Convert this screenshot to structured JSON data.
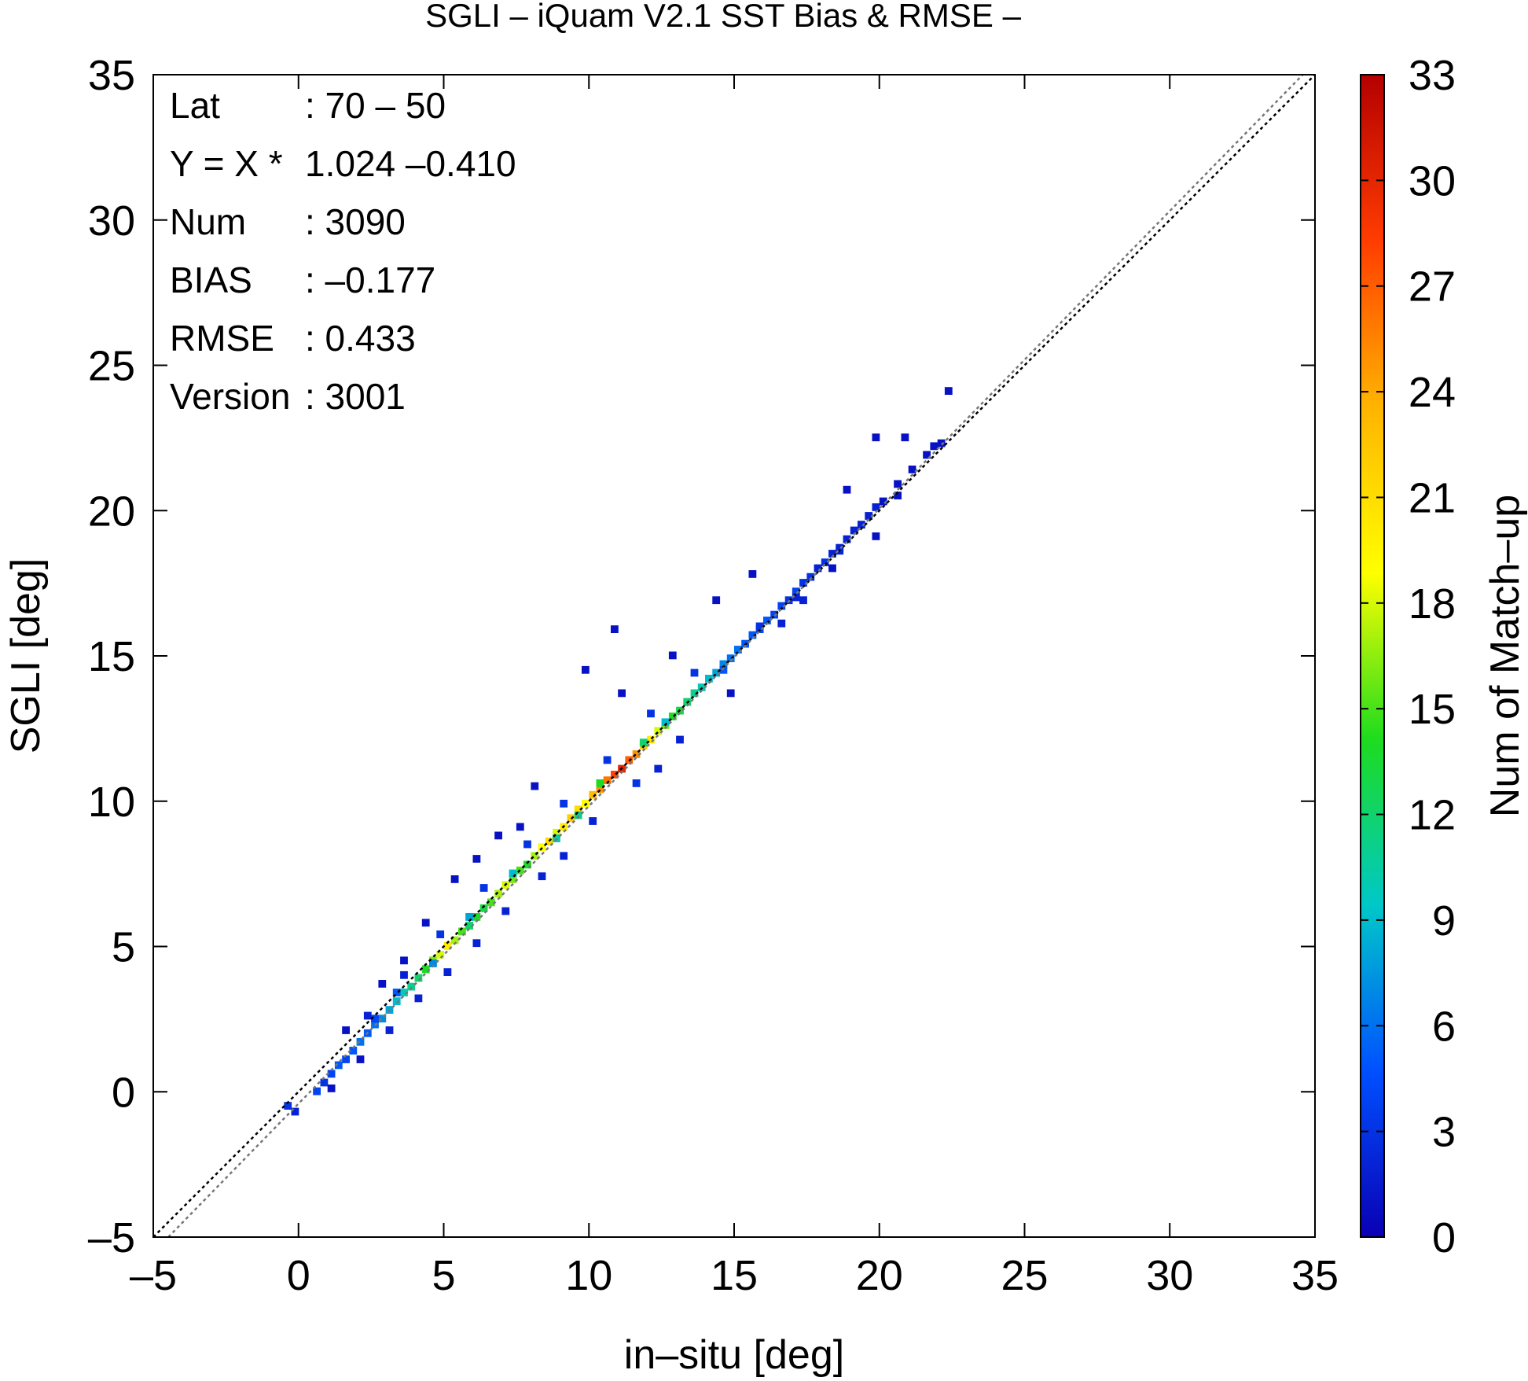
{
  "chart_data": {
    "type": "heatmap",
    "title": "SGLI – iQuam V2.1 SST Bias & RMSE  –",
    "xlabel": "in–situ [deg]",
    "ylabel": "SGLI [deg]",
    "xlim": [
      -5,
      35
    ],
    "ylim": [
      -5,
      35
    ],
    "x_ticks": [
      "–5",
      "0",
      "5",
      "10",
      "15",
      "20",
      "25",
      "30",
      "35"
    ],
    "y_ticks": [
      "–5",
      "0",
      "5",
      "10",
      "15",
      "20",
      "25",
      "30",
      "35"
    ],
    "colorbar": {
      "label": "Num of Match–up",
      "range": [
        0,
        33
      ],
      "ticks": [
        "0",
        "3",
        "6",
        "9",
        "12",
        "15",
        "18",
        "21",
        "24",
        "27",
        "30",
        "33"
      ],
      "colors": [
        "#0a00b4",
        "#0050ff",
        "#00c8c8",
        "#1edc1e",
        "#ffff00",
        "#ffb400",
        "#ff3c00",
        "#b40000"
      ]
    },
    "reference_lines": [
      {
        "name": "1:1 line",
        "slope": 1,
        "intercept": 0,
        "color": "#000000",
        "style": "dotted"
      },
      {
        "name": "regression",
        "slope": 1.024,
        "intercept": -0.41,
        "color": "#777777",
        "style": "dotted"
      }
    ],
    "stats": [
      {
        "label": "Lat",
        "value": ": 70 – 50"
      },
      {
        "label": "Y = X *",
        "value": "1.024 –0.410"
      },
      {
        "label": "Num",
        "value": ": 3090"
      },
      {
        "label": "BIAS",
        "value": ": –0.177"
      },
      {
        "label": "RMSE",
        "value": ": 0.433"
      },
      {
        "label": "Version",
        "value": ": 3001"
      }
    ],
    "cell_size": 0.25,
    "cells": [
      [
        -0.5,
        -0.6,
        3
      ],
      [
        -0.25,
        -0.8,
        2
      ],
      [
        0.5,
        -0.1,
        4
      ],
      [
        0.75,
        0.2,
        3
      ],
      [
        1.0,
        0.5,
        4
      ],
      [
        1.25,
        0.8,
        5
      ],
      [
        1.5,
        1.0,
        4
      ],
      [
        1.75,
        1.3,
        5
      ],
      [
        2.0,
        1.6,
        6
      ],
      [
        2.25,
        1.9,
        5
      ],
      [
        2.5,
        2.2,
        6
      ],
      [
        2.75,
        2.4,
        7
      ],
      [
        3.0,
        2.7,
        8
      ],
      [
        3.25,
        3.0,
        9
      ],
      [
        3.5,
        3.3,
        10
      ],
      [
        3.75,
        3.5,
        11
      ],
      [
        4.0,
        3.8,
        12
      ],
      [
        4.25,
        4.1,
        14
      ],
      [
        4.5,
        4.4,
        16
      ],
      [
        4.75,
        4.6,
        18
      ],
      [
        5.0,
        4.9,
        20
      ],
      [
        5.25,
        5.1,
        17
      ],
      [
        5.5,
        5.4,
        15
      ],
      [
        5.75,
        5.6,
        12
      ],
      [
        6.0,
        5.9,
        14
      ],
      [
        6.25,
        6.2,
        13
      ],
      [
        6.5,
        6.4,
        15
      ],
      [
        6.75,
        6.7,
        17
      ],
      [
        7.0,
        7.0,
        18
      ],
      [
        7.25,
        7.2,
        16
      ],
      [
        7.5,
        7.5,
        15
      ],
      [
        7.75,
        7.7,
        14
      ],
      [
        8.0,
        8.0,
        17
      ],
      [
        8.25,
        8.3,
        19
      ],
      [
        8.5,
        8.5,
        21
      ],
      [
        8.75,
        8.8,
        18
      ],
      [
        9.0,
        9.0,
        20
      ],
      [
        9.25,
        9.3,
        22
      ],
      [
        9.5,
        9.6,
        21
      ],
      [
        9.75,
        9.8,
        19
      ],
      [
        10.0,
        10.1,
        23
      ],
      [
        10.25,
        10.3,
        25
      ],
      [
        10.5,
        10.6,
        26
      ],
      [
        10.75,
        10.8,
        28
      ],
      [
        11.0,
        11.0,
        30
      ],
      [
        11.25,
        11.3,
        27
      ],
      [
        11.5,
        11.5,
        25
      ],
      [
        11.75,
        11.8,
        22
      ],
      [
        12.0,
        12.0,
        20
      ],
      [
        12.25,
        12.3,
        18
      ],
      [
        12.5,
        12.5,
        16
      ],
      [
        12.75,
        12.8,
        14
      ],
      [
        13.0,
        13.0,
        13
      ],
      [
        13.25,
        13.3,
        12
      ],
      [
        13.5,
        13.6,
        11
      ],
      [
        13.75,
        13.8,
        10
      ],
      [
        14.0,
        14.1,
        9
      ],
      [
        14.25,
        14.3,
        8
      ],
      [
        14.5,
        14.6,
        7
      ],
      [
        14.75,
        14.8,
        6
      ],
      [
        15.0,
        15.1,
        6
      ],
      [
        15.25,
        15.3,
        5
      ],
      [
        15.5,
        15.6,
        5
      ],
      [
        15.75,
        15.8,
        4
      ],
      [
        16.0,
        16.1,
        5
      ],
      [
        16.25,
        16.3,
        4
      ],
      [
        16.5,
        16.6,
        4
      ],
      [
        16.75,
        16.8,
        3
      ],
      [
        17.0,
        17.1,
        4
      ],
      [
        17.25,
        17.4,
        3
      ],
      [
        17.5,
        17.6,
        3
      ],
      [
        17.75,
        17.9,
        2
      ],
      [
        18.0,
        18.1,
        3
      ],
      [
        18.25,
        18.4,
        2
      ],
      [
        18.5,
        18.6,
        2
      ],
      [
        18.75,
        18.9,
        2
      ],
      [
        19.0,
        19.2,
        2
      ],
      [
        19.25,
        19.4,
        2
      ],
      [
        19.5,
        19.7,
        2
      ],
      [
        19.75,
        20.0,
        2
      ],
      [
        20.0,
        20.2,
        1
      ],
      [
        20.5,
        20.8,
        1
      ],
      [
        21.0,
        21.3,
        1
      ],
      [
        21.5,
        21.8,
        1
      ],
      [
        21.75,
        22.1,
        1
      ],
      [
        22.0,
        22.2,
        1
      ],
      [
        22.25,
        24.0,
        1
      ],
      [
        19.75,
        22.4,
        1
      ],
      [
        20.75,
        22.4,
        1
      ],
      [
        18.75,
        20.6,
        1
      ],
      [
        11.0,
        13.6,
        1
      ],
      [
        9.75,
        14.4,
        1
      ],
      [
        12.75,
        14.9,
        1
      ],
      [
        10.75,
        15.8,
        1
      ],
      [
        6.0,
        7.9,
        1
      ],
      [
        5.25,
        7.2,
        1
      ],
      [
        4.25,
        5.7,
        1
      ],
      [
        7.5,
        9.0,
        1
      ],
      [
        8.0,
        10.4,
        1
      ],
      [
        6.75,
        8.7,
        1
      ],
      [
        15.5,
        17.7,
        1
      ],
      [
        14.25,
        16.8,
        1
      ],
      [
        3.5,
        4.4,
        1
      ],
      [
        2.75,
        3.6,
        1
      ],
      [
        1.5,
        2.0,
        1
      ],
      [
        12.25,
        11.0,
        2
      ],
      [
        13.0,
        12.0,
        2
      ],
      [
        10.0,
        9.2,
        2
      ],
      [
        11.5,
        10.5,
        3
      ],
      [
        9.0,
        8.0,
        2
      ],
      [
        8.25,
        7.3,
        2
      ],
      [
        7.0,
        6.1,
        2
      ],
      [
        6.0,
        5.0,
        2
      ],
      [
        5.0,
        4.0,
        2
      ],
      [
        4.0,
        3.1,
        2
      ],
      [
        3.0,
        2.0,
        2
      ],
      [
        2.0,
        1.0,
        1
      ],
      [
        1.0,
        0.0,
        1
      ],
      [
        14.75,
        13.6,
        1
      ],
      [
        16.5,
        16.0,
        2
      ],
      [
        17.25,
        16.8,
        2
      ],
      [
        18.25,
        17.9,
        1
      ],
      [
        19.75,
        19.0,
        1
      ],
      [
        13.5,
        14.3,
        3
      ],
      [
        12.0,
        12.9,
        3
      ],
      [
        10.5,
        11.3,
        3
      ],
      [
        9.0,
        9.8,
        3
      ],
      [
        7.75,
        8.4,
        3
      ],
      [
        6.25,
        6.9,
        3
      ],
      [
        4.75,
        5.3,
        3
      ],
      [
        3.5,
        3.9,
        2
      ],
      [
        2.25,
        2.5,
        2
      ],
      [
        11.75,
        11.9,
        12
      ],
      [
        12.5,
        12.6,
        9
      ],
      [
        10.25,
        10.5,
        14
      ],
      [
        9.5,
        9.4,
        11
      ],
      [
        8.75,
        8.6,
        10
      ],
      [
        7.25,
        7.4,
        9
      ],
      [
        5.75,
        5.9,
        8
      ],
      [
        4.5,
        4.3,
        7
      ],
      [
        3.25,
        3.3,
        5
      ],
      [
        2.5,
        2.4,
        4
      ],
      [
        14.5,
        14.4,
        5
      ],
      [
        15.75,
        15.9,
        3
      ],
      [
        17.0,
        16.9,
        2
      ],
      [
        18.5,
        18.5,
        2
      ],
      [
        20.5,
        20.4,
        1
      ]
    ]
  }
}
